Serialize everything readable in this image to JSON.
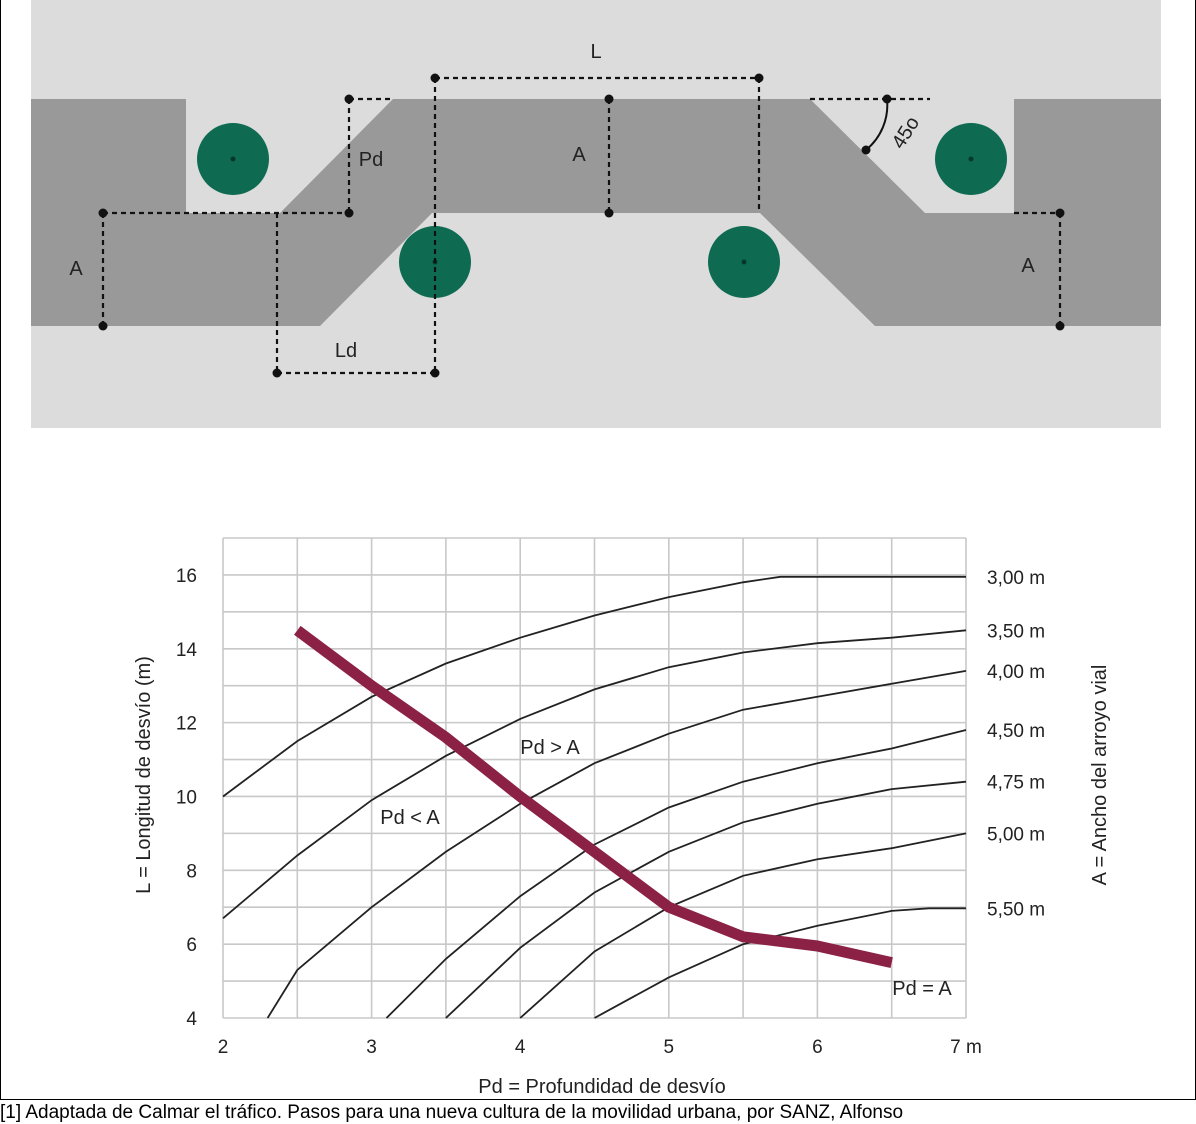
{
  "colors": {
    "road": "#999999",
    "background": "#dcdcdc",
    "tree": "#0e6b52",
    "curve": "#8b2245",
    "grid": "#c8c8c8",
    "line": "#222222"
  },
  "plan": {
    "label_L": "L",
    "label_A_left": "A",
    "label_A_center": "A",
    "label_A_right": "A",
    "label_Pd": "Pd",
    "label_Ld": "Ld",
    "label_angle": "45o"
  },
  "chart_data": {
    "type": "line",
    "x_ticks": [
      "2",
      "3",
      "4",
      "5",
      "6",
      "7 m"
    ],
    "y_ticks": [
      "4",
      "6",
      "8",
      "10",
      "12",
      "14",
      "16"
    ],
    "xlim": [
      2,
      7
    ],
    "ylim": [
      4,
      17
    ],
    "xlabel": "Pd = Profundidad de desvío",
    "ylabel": "L = Longitud de desvío (m)",
    "right_label": "A = Ancho del arroyo vial",
    "grid": true,
    "series": [
      {
        "name": "3,00 m",
        "points": [
          [
            2,
            10
          ],
          [
            2.5,
            11.5
          ],
          [
            3,
            12.7
          ],
          [
            3.5,
            13.6
          ],
          [
            4,
            14.3
          ],
          [
            4.5,
            14.9
          ],
          [
            5,
            15.4
          ],
          [
            5.5,
            15.8
          ],
          [
            5.75,
            15.95
          ],
          [
            6,
            15.95
          ],
          [
            7,
            15.95
          ]
        ]
      },
      {
        "name": "3,50 m",
        "points": [
          [
            2,
            6.7
          ],
          [
            2.5,
            8.4
          ],
          [
            3,
            9.9
          ],
          [
            3.5,
            11.1
          ],
          [
            4,
            12.1
          ],
          [
            4.5,
            12.9
          ],
          [
            5,
            13.5
          ],
          [
            5.5,
            13.9
          ],
          [
            6,
            14.15
          ],
          [
            6.5,
            14.3
          ],
          [
            7,
            14.5
          ]
        ]
      },
      {
        "name": "4,00 m",
        "points": [
          [
            2.3,
            4
          ],
          [
            2.5,
            5.3
          ],
          [
            3,
            7
          ],
          [
            3.5,
            8.5
          ],
          [
            4,
            9.8
          ],
          [
            4.5,
            10.9
          ],
          [
            5,
            11.7
          ],
          [
            5.5,
            12.35
          ],
          [
            6,
            12.7
          ],
          [
            6.5,
            13.05
          ],
          [
            7,
            13.4
          ]
        ]
      },
      {
        "name": "4,50 m",
        "points": [
          [
            3.1,
            4
          ],
          [
            3.5,
            5.6
          ],
          [
            4,
            7.3
          ],
          [
            4.5,
            8.7
          ],
          [
            5,
            9.7
          ],
          [
            5.5,
            10.4
          ],
          [
            6,
            10.9
          ],
          [
            6.5,
            11.3
          ],
          [
            7,
            11.8
          ]
        ]
      },
      {
        "name": "4,75 m",
        "points": [
          [
            3.5,
            4
          ],
          [
            4,
            5.9
          ],
          [
            4.5,
            7.4
          ],
          [
            5,
            8.5
          ],
          [
            5.5,
            9.3
          ],
          [
            6,
            9.8
          ],
          [
            6.5,
            10.2
          ],
          [
            7,
            10.4
          ]
        ]
      },
      {
        "name": "5,00 m",
        "points": [
          [
            4,
            4
          ],
          [
            4.5,
            5.8
          ],
          [
            5,
            7
          ],
          [
            5.5,
            7.85
          ],
          [
            6,
            8.3
          ],
          [
            6.5,
            8.6
          ],
          [
            7,
            9
          ]
        ]
      },
      {
        "name": "5,50 m",
        "points": [
          [
            4.5,
            4
          ],
          [
            5,
            5.1
          ],
          [
            5.5,
            6
          ],
          [
            6,
            6.5
          ],
          [
            6.5,
            6.9
          ],
          [
            6.75,
            6.97
          ],
          [
            7,
            6.97
          ]
        ]
      }
    ],
    "highlight": {
      "name": "Pd = A",
      "points": [
        [
          2.5,
          14.5
        ],
        [
          3,
          13
        ],
        [
          3.5,
          11.6
        ],
        [
          4,
          10
        ],
        [
          4.5,
          8.5
        ],
        [
          5,
          7
        ],
        [
          5.5,
          6.2
        ],
        [
          6,
          5.95
        ],
        [
          6.5,
          5.5
        ]
      ]
    },
    "annotations": [
      "Pd > A",
      "Pd < A",
      "Pd = A"
    ]
  },
  "caption": "[1] Adaptada de Calmar el tráfico. Pasos para una nueva cultura de la movilidad urbana, por SANZ, Alfonso"
}
